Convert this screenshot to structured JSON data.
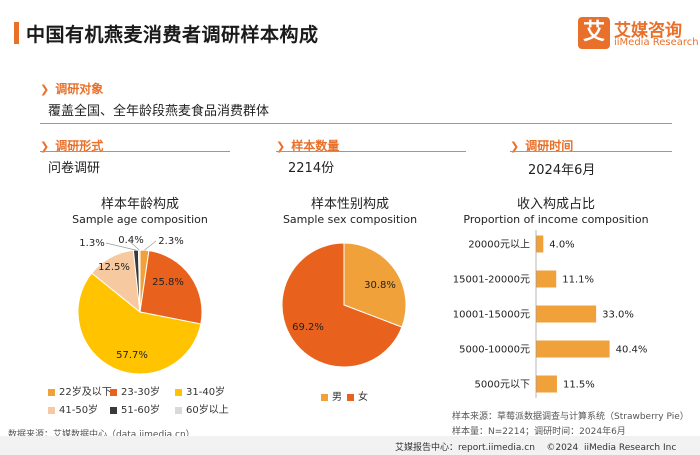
{
  "header": {
    "title": "中国有机燕麦消费者调研样本构成",
    "logo_mark": "艾",
    "logo_cn": "艾媒咨询",
    "logo_en": "iiMedia Research"
  },
  "info": {
    "object_label": "调研对象",
    "object_value": "覆盖全国、全年龄段燕麦食品消费群体",
    "form_label": "调研形式",
    "form_value": "问卷调研",
    "size_label": "样本数量",
    "size_value": "2214份",
    "time_label": "调研时间",
    "time_value": "2024年6月"
  },
  "colors": {
    "accent": "#e8702a",
    "age": [
      "#f0a13a",
      "#e8621e",
      "#ffc300",
      "#f7c9a0",
      "#3a3a3a",
      "#d9d9d9"
    ],
    "sex": [
      "#f0a13a",
      "#e8621e"
    ],
    "bar": "#f0a13a"
  },
  "chart_data": [
    {
      "type": "pie",
      "title": "样本年龄构成",
      "subtitle": "Sample age composition",
      "labels": [
        "22岁及以下",
        "23-30岁",
        "31-40岁",
        "41-50岁",
        "51-60岁",
        "60岁以上"
      ],
      "values": [
        2.3,
        25.8,
        57.7,
        12.5,
        1.3,
        0.4
      ],
      "value_labels": [
        "2.3%",
        "25.8%",
        "57.7%",
        "12.5%",
        "1.3%",
        "0.4%"
      ]
    },
    {
      "type": "pie",
      "title": "样本性别构成",
      "subtitle": "Sample sex composition",
      "labels": [
        "男",
        "女"
      ],
      "values": [
        30.8,
        69.2
      ],
      "value_labels": [
        "30.8%",
        "69.2%"
      ]
    },
    {
      "type": "bar",
      "orientation": "horizontal",
      "title": "收入构成占比",
      "subtitle": "Proportion of income composition",
      "categories": [
        "20000元以上",
        "15001-20000元",
        "10001-15000元",
        "5000-10000元",
        "5000元以下"
      ],
      "values": [
        4.0,
        11.1,
        33.0,
        40.4,
        11.5
      ],
      "value_labels": [
        "4.0%",
        "11.1%",
        "33.0%",
        "40.4%",
        "11.5%"
      ]
    }
  ],
  "footer": {
    "source_left": "数据来源：艾媒数据中心（data.iimedia.cn）",
    "source_right": "样本来源：草莓派数据调查与计算系统（Strawberry Pie）",
    "sample_note": "样本量：N=2214；调研时间：2024年6月",
    "bottom": "艾媒报告中心：report.iimedia.cn    ©2024  iiMedia Research Inc"
  }
}
